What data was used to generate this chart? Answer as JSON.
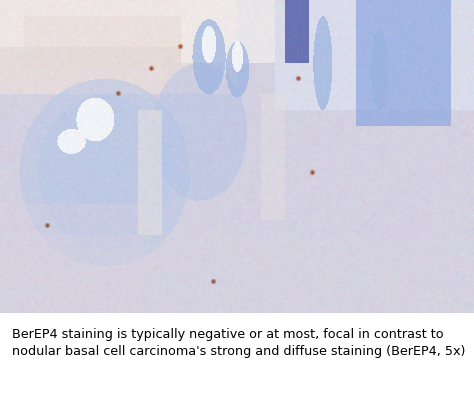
{
  "caption_line1": "BerEP4 staining is typically negative or at most, focal in contrast to",
  "caption_line2": "nodular basal cell carcinoma's strong and diffuse staining (BerEP4, 5x)",
  "caption_fontsize": 9.2,
  "caption_color": "#000000",
  "background_color": "#ffffff",
  "fig_width": 4.74,
  "fig_height": 3.96,
  "dpi": 100,
  "img_rows": 313,
  "img_cols": 474,
  "cap_rows": 83
}
